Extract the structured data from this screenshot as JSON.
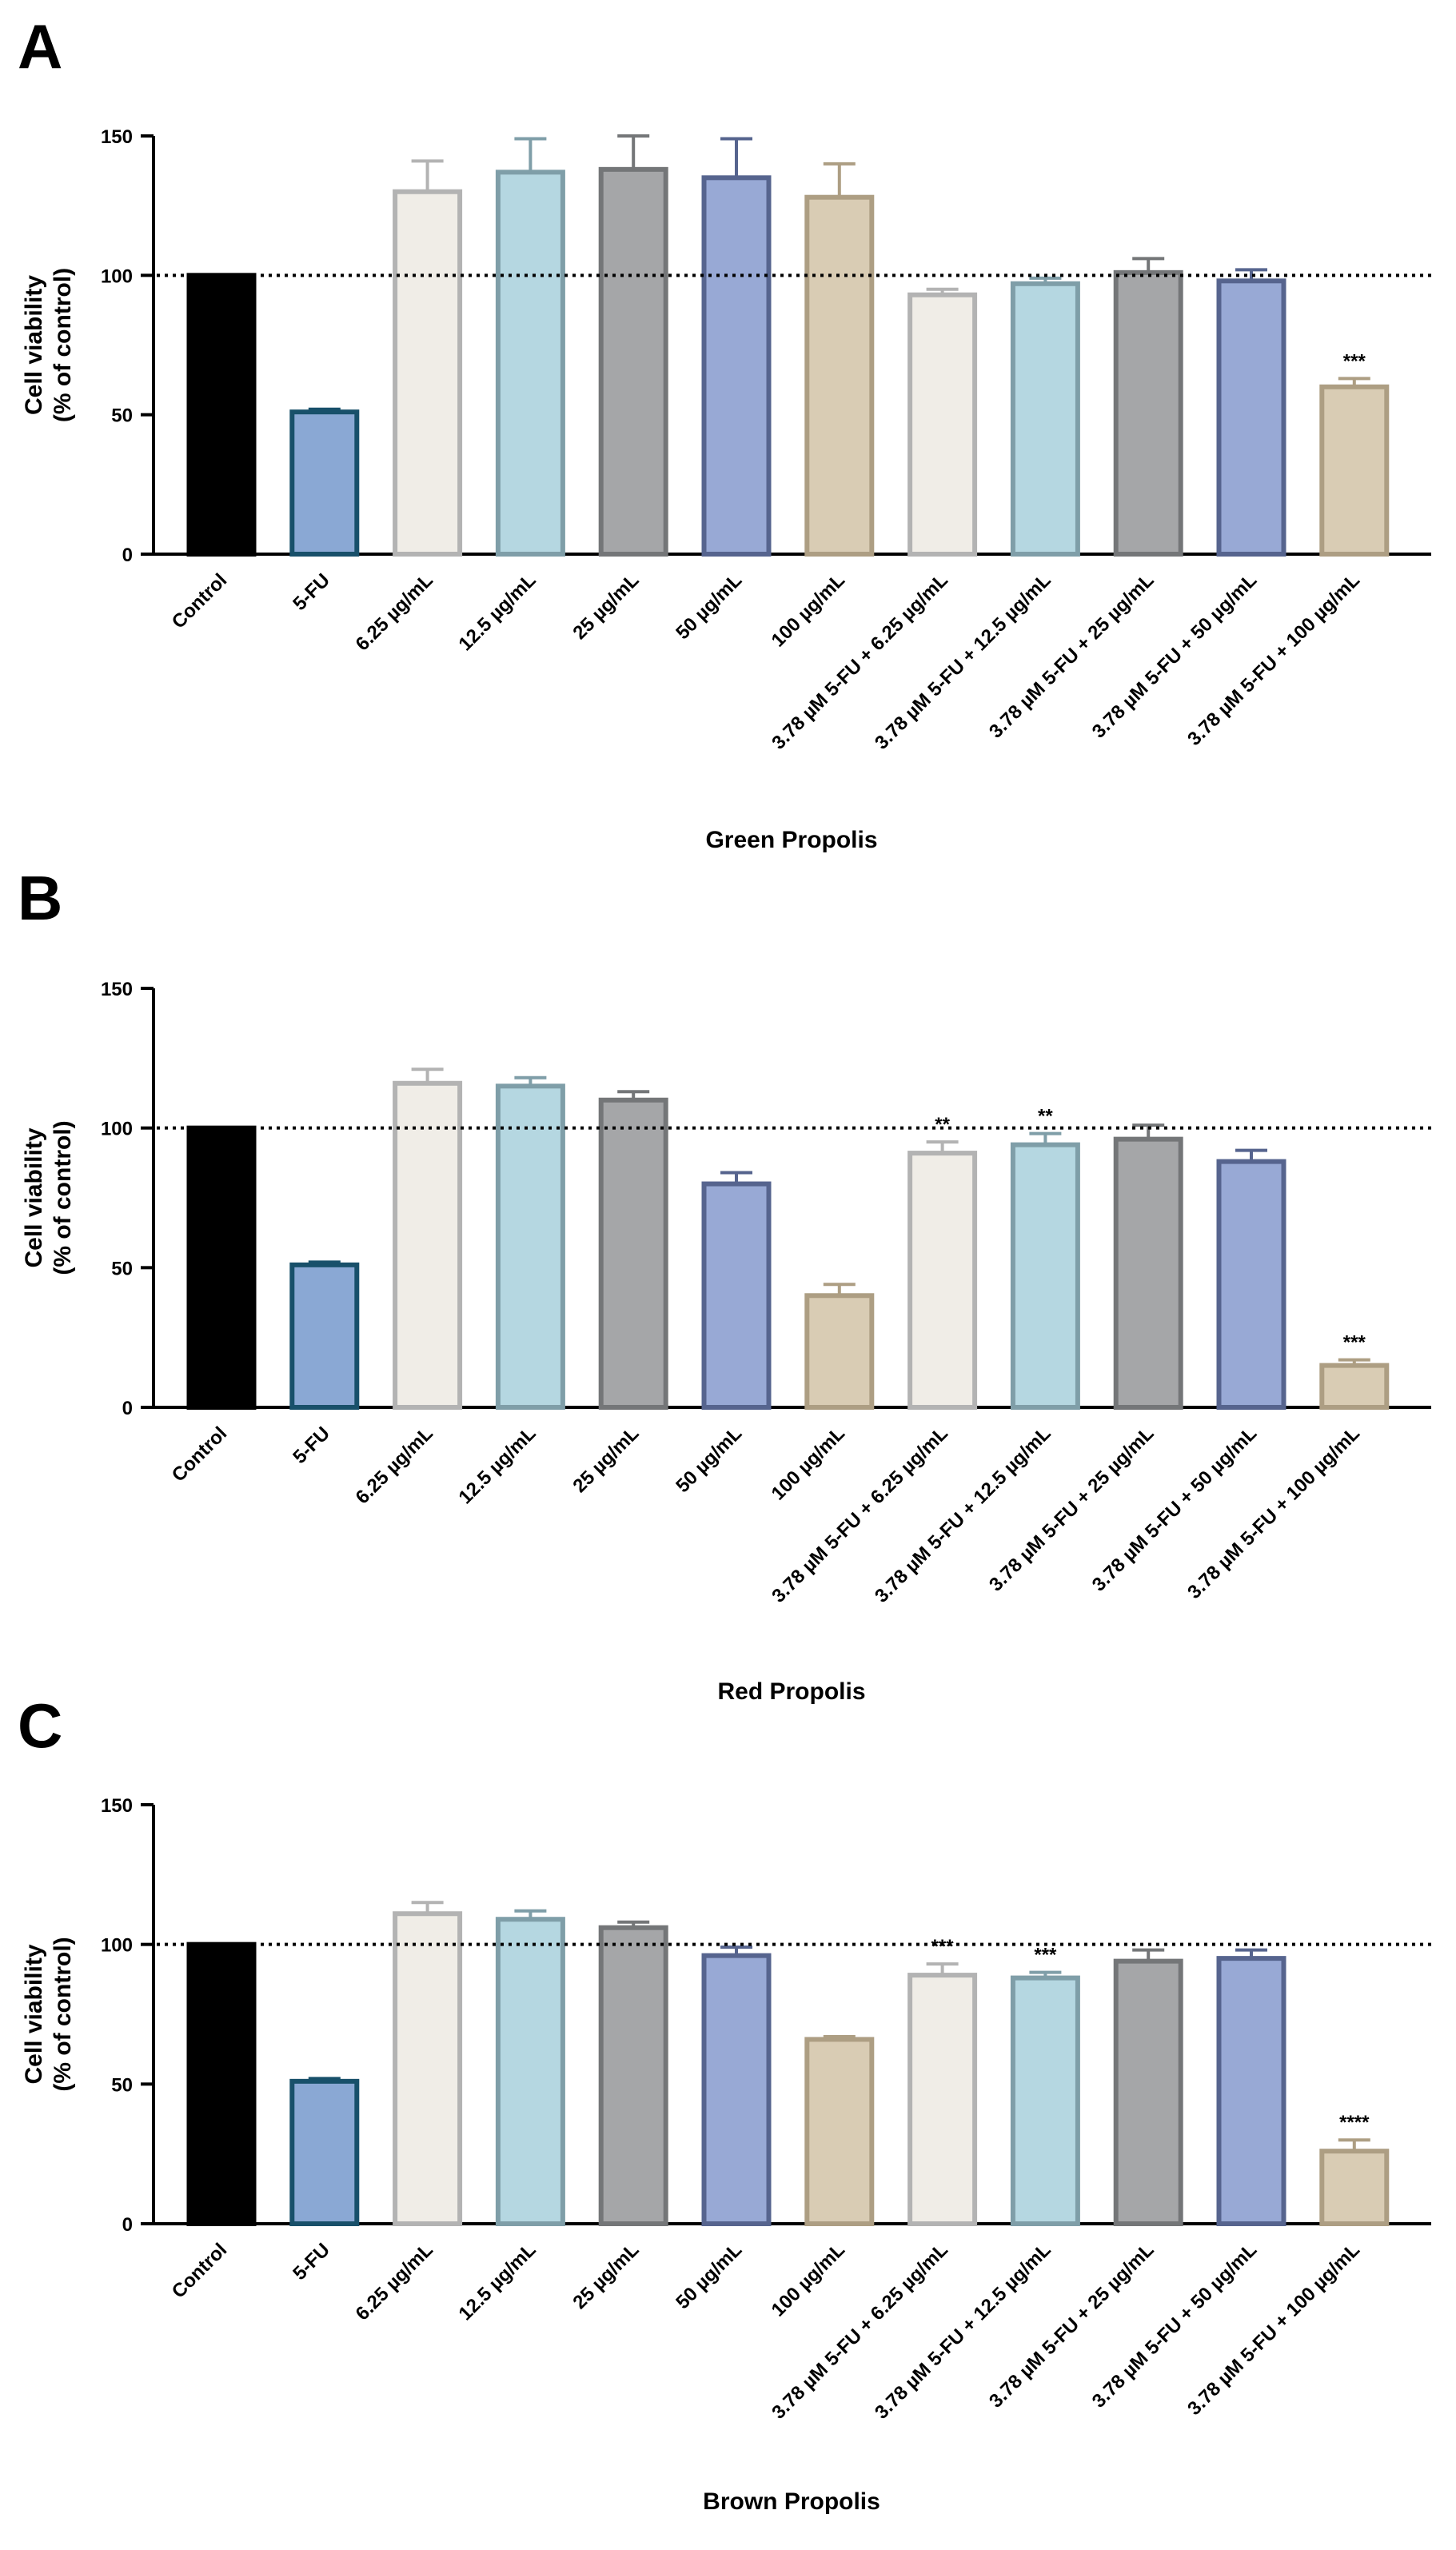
{
  "chart_data": [
    {
      "type": "bar",
      "panel": "A",
      "title": "",
      "xlabel": "Green Propolis",
      "ylabel": "Cell viability\n(% of control)",
      "ylim": [
        0,
        150
      ],
      "yticks": [
        0,
        50,
        100,
        150
      ],
      "reference_line": 100,
      "categories": [
        "Control",
        "5-FU",
        "6.25 µg/mL",
        "12.5 µg/mL",
        "25 µg/mL",
        "50 µg/mL",
        "100 µg/mL",
        "3.78 µM 5-FU + 6.25 µg/mL",
        "3.78 µM 5-FU + 12.5 µg/mL",
        "3.78 µM 5-FU + 25 µg/mL",
        "3.78 µM 5-FU + 50 µg/mL",
        "3.78 µM 5-FU + 100 µg/mL"
      ],
      "values": [
        100,
        51,
        130,
        137,
        138,
        135,
        128,
        93,
        97,
        101,
        98,
        60
      ],
      "errors": [
        0,
        1,
        11,
        12,
        12,
        14,
        12,
        2,
        2,
        5,
        4,
        3
      ],
      "significance": [
        "",
        "",
        "",
        "",
        "",
        "",
        "",
        "",
        "",
        "",
        "",
        "***"
      ]
    },
    {
      "type": "bar",
      "panel": "B",
      "title": "",
      "xlabel": "Red Propolis",
      "ylabel": "Cell viability\n(% of control)",
      "ylim": [
        0,
        150
      ],
      "yticks": [
        0,
        50,
        100,
        150
      ],
      "reference_line": 100,
      "categories": [
        "Control",
        "5-FU",
        "6.25 µg/mL",
        "12.5 µg/mL",
        "25 µg/mL",
        "50 µg/mL",
        "100 µg/mL",
        "3.78 µM 5-FU + 6.25 µg/mL",
        "3.78 µM 5-FU + 12.5 µg/mL",
        "3.78 µM 5-FU + 25 µg/mL",
        "3.78 µM 5-FU + 50 µg/mL",
        "3.78 µM 5-FU + 100 µg/mL"
      ],
      "values": [
        100,
        51,
        116,
        115,
        110,
        80,
        40,
        91,
        94,
        96,
        88,
        15
      ],
      "errors": [
        0,
        1,
        5,
        3,
        3,
        4,
        4,
        4,
        4,
        5,
        4,
        2
      ],
      "significance": [
        "",
        "",
        "",
        "",
        "",
        "",
        "",
        "**",
        "**",
        "",
        "",
        "***"
      ]
    },
    {
      "type": "bar",
      "panel": "C",
      "title": "",
      "xlabel": "Brown Propolis",
      "ylabel": "Cell viability\n(% of control)",
      "ylim": [
        0,
        150
      ],
      "yticks": [
        0,
        50,
        100,
        150
      ],
      "reference_line": 100,
      "categories": [
        "Control",
        "5-FU",
        "6.25 µg/mL",
        "12.5 µg/mL",
        "25 µg/mL",
        "50 µg/mL",
        "100 µg/mL",
        "3.78 µM 5-FU + 6.25 µg/mL",
        "3.78 µM 5-FU + 12.5 µg/mL",
        "3.78 µM 5-FU + 25 µg/mL",
        "3.78 µM 5-FU + 50 µg/mL",
        "3.78 µM 5-FU + 100 µg/mL"
      ],
      "values": [
        100,
        51,
        111,
        109,
        106,
        96,
        66,
        89,
        88,
        94,
        95,
        26
      ],
      "errors": [
        0,
        1,
        4,
        3,
        2,
        3,
        1,
        4,
        2,
        4,
        3,
        4
      ],
      "significance": [
        "",
        "",
        "",
        "",
        "",
        "",
        "",
        "***",
        "***",
        "",
        "",
        "****"
      ]
    }
  ],
  "style": {
    "fills": [
      "#000000",
      "#8aa8d4",
      "#f0ede7",
      "#b5d7e1",
      "#a5a6a8",
      "#98a9d5",
      "#d9ccb4",
      "#f0ede7",
      "#b5d7e1",
      "#a5a6a8",
      "#98a9d5",
      "#d9ccb4"
    ],
    "strokes": [
      "#000000",
      "#18506a",
      "#b3b3b3",
      "#7f9ea8",
      "#747678",
      "#56648e",
      "#ad9e83",
      "#b3b3b3",
      "#7f9ea8",
      "#747678",
      "#56648e",
      "#ad9e83"
    ]
  }
}
